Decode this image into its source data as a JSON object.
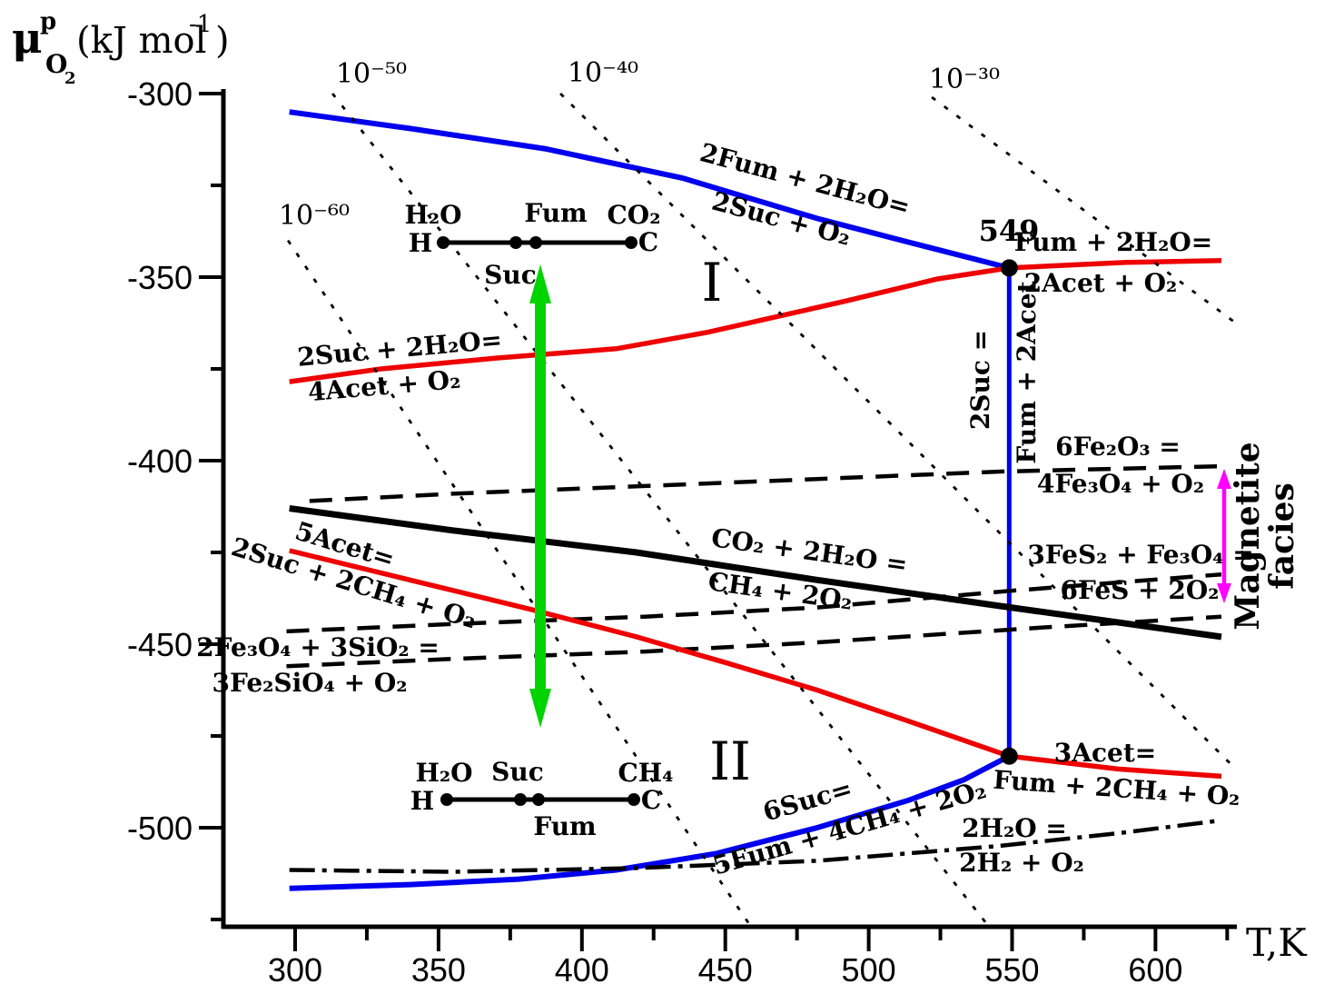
{
  "chart_data": {
    "type": "line",
    "title": "Oxygen chemical potential vs temperature diagram (organic redox couples and mineral buffers)",
    "xlabel": "T,K",
    "ylabel": "mu-p-O2 (kJ mol-1)",
    "xlim": [
      275,
      630
    ],
    "ylim": [
      -530,
      -295
    ],
    "grid": false,
    "axes": {
      "x": {
        "label": "T,K",
        "ticks": [
          300,
          350,
          400,
          450,
          500,
          550,
          600
        ],
        "minor_step": 25
      },
      "y": {
        "ticks": [
          -300,
          -350,
          -400,
          -450,
          -500
        ],
        "minor_step": 25,
        "title_parts": {
          "mu": "μ",
          "sup": "p",
          "sub": "O",
          "sub_index": "2",
          "units_open": "(kJ mol",
          "units_exp": "-1",
          "units_close": ")"
        }
      }
    },
    "series": [
      {
        "id": "fum-suc",
        "name": "2Fum + 2H2O = 2Suc + O2",
        "labels": [
          "2Fum + 2H₂O=",
          "2Suc + O₂"
        ],
        "color": "#0000EE",
        "style": "solid",
        "width": 6,
        "points": [
          [
            298,
            -305
          ],
          [
            340,
            -309.5
          ],
          [
            387,
            -315
          ],
          [
            435,
            -323
          ],
          [
            482,
            -334
          ],
          [
            514,
            -340.5
          ],
          [
            549,
            -347.5
          ]
        ]
      },
      {
        "id": "suc-acet",
        "name": "2Suc + 2H2O = 4Acet + O2",
        "labels": [
          "2Suc + 2H₂O=",
          "4Acet + O₂"
        ],
        "color": "#EE0000",
        "style": "solid",
        "width": 5.5,
        "points": [
          [
            298,
            -378.5
          ],
          [
            330,
            -375
          ],
          [
            371,
            -372
          ],
          [
            412,
            -369.5
          ],
          [
            444,
            -365
          ],
          [
            492,
            -356.5
          ],
          [
            524,
            -350.5
          ],
          [
            549,
            -347.5
          ]
        ]
      },
      {
        "id": "fum-acet",
        "name": "Fum + 2H2O = 2Acet + O2",
        "labels": [
          "Fum + 2H₂O=",
          "2Acet + O₂"
        ],
        "color": "#EE0000",
        "style": "solid",
        "width": 5.5,
        "points": [
          [
            549,
            -347.5
          ],
          [
            590,
            -346
          ],
          [
            623,
            -345.5
          ]
        ]
      },
      {
        "id": "suc-fum-acet",
        "name": "2Suc = Fum + 2Acet",
        "labels": [
          "2Suc =",
          "Fum + 2Acet"
        ],
        "color": "#0000EE",
        "style": "solid",
        "width": 5,
        "points": [
          [
            549,
            -347.5
          ],
          [
            549,
            -480.5
          ]
        ]
      },
      {
        "id": "co2-ch4",
        "name": "CO2 + 2H2O = CH4 + 2O2",
        "labels": [
          "CO₂ + 2H₂O =",
          "CH₄ + 2O₂"
        ],
        "color": "#000000",
        "style": "solid",
        "width": 7,
        "points": [
          [
            298,
            -413
          ],
          [
            355,
            -419
          ],
          [
            419,
            -425
          ],
          [
            482,
            -432.5
          ],
          [
            545,
            -439.5
          ],
          [
            623,
            -448
          ]
        ]
      },
      {
        "id": "hematite-magnetite",
        "name": "6Fe2O3 = 4Fe3O4 + O2",
        "labels": [
          "6Fe₂O₃ =",
          "4Fe₃O₄ + O₂"
        ],
        "color": "#000000",
        "style": "dashed",
        "width": 4.5,
        "points": [
          [
            305,
            -411
          ],
          [
            355,
            -409
          ],
          [
            419,
            -407
          ],
          [
            482,
            -405
          ],
          [
            545,
            -403
          ],
          [
            623,
            -401.5
          ]
        ]
      },
      {
        "id": "pyrite-pyrrhotite",
        "name": "3FeS2 + Fe3O4 = 6FeS + 2O2",
        "labels": [
          "3FeS₂ + Fe₃O₄ =",
          "6FeS + 2O₂"
        ],
        "color": "#000000",
        "style": "dashed",
        "width": 4.5,
        "points": [
          [
            297,
            -446.5
          ],
          [
            355,
            -444.5
          ],
          [
            422,
            -442.5
          ],
          [
            482,
            -440
          ],
          [
            549,
            -435.5
          ],
          [
            623,
            -431
          ]
        ]
      },
      {
        "id": "magnetite-fayalite",
        "name": "2Fe3O4 + 3SiO2 = 3Fe2SiO4 + O2",
        "labels": [
          "2Fe₃O₄ + 3SiO₂ =",
          "3Fe₂SiO₄ + O₂"
        ],
        "color": "#000000",
        "style": "dashed",
        "width": 4.5,
        "points": [
          [
            297,
            -456
          ],
          [
            355,
            -454
          ],
          [
            422,
            -452
          ],
          [
            482,
            -449.5
          ],
          [
            560,
            -445.5
          ],
          [
            623,
            -442.5
          ]
        ]
      },
      {
        "id": "acet-suc-ch4",
        "name": "5Acet = 2Suc + 2CH4 + O2",
        "labels": [
          "5Acet=",
          "2Suc + 2CH₄ + O₂"
        ],
        "color": "#EE0000",
        "style": "solid",
        "width": 5.5,
        "points": [
          [
            298,
            -424.5
          ],
          [
            340,
            -432.5
          ],
          [
            382,
            -440.5
          ],
          [
            419,
            -448
          ],
          [
            450,
            -455
          ],
          [
            482,
            -462.5
          ],
          [
            514,
            -471
          ],
          [
            549,
            -480.5
          ]
        ]
      },
      {
        "id": "suc-fum-ch4",
        "name": "6Suc = 5Fum + 4CH4 + 2O2",
        "labels": [
          "6Suc=",
          "5Fum + 4CH₄ + 2O₂"
        ],
        "color": "#0000EE",
        "style": "solid",
        "width": 6,
        "points": [
          [
            298,
            -516.5
          ],
          [
            340,
            -515.5
          ],
          [
            378,
            -514
          ],
          [
            412,
            -511.5
          ],
          [
            447,
            -507
          ],
          [
            482,
            -500
          ],
          [
            514,
            -492.5
          ],
          [
            533,
            -487
          ],
          [
            549,
            -480.5
          ]
        ]
      },
      {
        "id": "acet-fum-ch4",
        "name": "3Acet = Fum + 2CH4 + O2",
        "labels": [
          "3Acet=",
          "Fum + 2CH₄ + O₂"
        ],
        "color": "#EE0000",
        "style": "solid",
        "width": 5.5,
        "points": [
          [
            549,
            -480.5
          ],
          [
            587,
            -484
          ],
          [
            623,
            -486
          ]
        ]
      },
      {
        "id": "water",
        "name": "2H2O = 2H2 + O2",
        "labels": [
          "2H₂O =",
          "2H₂ + O₂"
        ],
        "color": "#000000",
        "style": "dashdot",
        "width": 4.5,
        "points": [
          [
            298,
            -511.5
          ],
          [
            355,
            -512
          ],
          [
            419,
            -511
          ],
          [
            482,
            -509
          ],
          [
            545,
            -505
          ],
          [
            587,
            -501.5
          ],
          [
            623,
            -498
          ]
        ]
      },
      {
        "id": "iso-60",
        "name": "fO2 isopleth 1e-60",
        "label": "10⁻⁶⁰",
        "color": "#000000",
        "style": "dotted",
        "width": 2.8,
        "points": [
          [
            297.5,
            -340
          ],
          [
            459,
            -527
          ]
        ]
      },
      {
        "id": "iso-50",
        "name": "fO2 isopleth 1e-50",
        "label": "10⁻⁵⁰",
        "color": "#000000",
        "style": "dotted",
        "width": 2.8,
        "points": [
          [
            313,
            -300
          ],
          [
            542,
            -527
          ]
        ]
      },
      {
        "id": "iso-40",
        "name": "fO2 isopleth 1e-40",
        "label": "10⁻⁴⁰",
        "color": "#000000",
        "style": "dotted",
        "width": 2.8,
        "points": [
          [
            392.5,
            -300
          ],
          [
            628,
            -484
          ]
        ]
      },
      {
        "id": "iso-30",
        "name": "fO2 isopleth 1e-30",
        "label": "10⁻³⁰",
        "color": "#000000",
        "style": "dotted",
        "width": 2.8,
        "points": [
          [
            522,
            -301
          ],
          [
            628,
            -362.5
          ]
        ]
      }
    ],
    "junctions": [
      {
        "T": 549,
        "mu": -347.5,
        "label": "549"
      },
      {
        "T": 549,
        "mu": -480.5
      }
    ]
  },
  "annotations": {
    "regions": {
      "upper": "I",
      "lower": "II"
    },
    "magnetite_facies": {
      "line1": "Magnetite",
      "line2": "facies",
      "color": "#FF00FF"
    },
    "green_arrow": {
      "color": "#00D400",
      "meaning": "vertical double-headed arrow"
    },
    "inset_top": {
      "labels_above": [
        "H₂O",
        "Fum",
        "CO₂"
      ],
      "label_below": "Suc",
      "endpoint_left": "H",
      "endpoint_right": "C"
    },
    "inset_bottom": {
      "labels_above": [
        "H₂O",
        "Suc",
        "CH₄"
      ],
      "label_below": "Fum",
      "endpoint_left": "H",
      "endpoint_right": "C"
    }
  }
}
